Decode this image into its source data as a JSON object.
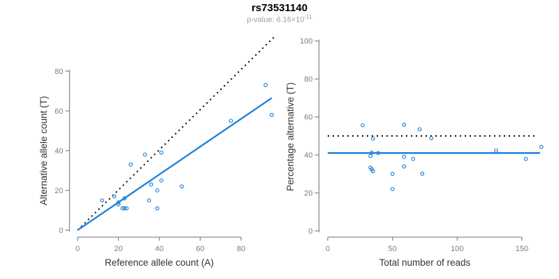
{
  "header": {
    "title": "rs73531140",
    "p_value_text": "p-value: 6.16×10",
    "p_value_exp": "-11"
  },
  "colors": {
    "accent_blue": "#1f82dc",
    "dotted_black": "#000000",
    "axis_line_gray": "#8c8c8c",
    "tick_label_gray": "#7d7d7d",
    "axis_title_dark": "#333333",
    "subtitle_gray": "#9e9e9e"
  },
  "chart_data": [
    {
      "type": "scatter",
      "marker": "open-circle",
      "xlabel": "Reference allele count (A)",
      "ylabel": "Alternative allele count (T)",
      "xticks": [
        0,
        20,
        40,
        60,
        80
      ],
      "yticks": [
        0,
        20,
        40,
        60,
        80
      ],
      "xlim": [
        0,
        96
      ],
      "ylim": [
        0,
        97
      ],
      "points": [
        [
          12,
          15
        ],
        [
          18,
          17
        ],
        [
          20,
          13
        ],
        [
          20,
          14
        ],
        [
          22,
          11
        ],
        [
          23,
          11
        ],
        [
          24,
          11
        ],
        [
          23,
          16
        ],
        [
          26,
          33
        ],
        [
          33,
          38
        ],
        [
          35,
          15
        ],
        [
          36,
          23
        ],
        [
          39,
          11
        ],
        [
          39,
          20
        ],
        [
          41,
          25
        ],
        [
          41,
          39
        ],
        [
          51,
          22
        ],
        [
          75,
          55
        ],
        [
          92,
          73
        ],
        [
          95,
          58
        ]
      ],
      "lines": [
        {
          "name": "identity-line",
          "style": "dotted",
          "color": "black",
          "x1": 0,
          "y1": 0,
          "x2": 96,
          "y2": 97
        },
        {
          "name": "regression-line",
          "style": "solid",
          "color": "blue",
          "x1": 0,
          "y1": 0,
          "x2": 95,
          "y2": 66.5
        }
      ]
    },
    {
      "type": "scatter",
      "marker": "open-circle",
      "xlabel": "Total number of reads",
      "ylabel": "Percentage alternative (T)",
      "xticks": [
        0,
        50,
        100,
        150
      ],
      "yticks": [
        0,
        20,
        40,
        60,
        80,
        100
      ],
      "xlim": [
        0,
        165
      ],
      "ylim": [
        0,
        100
      ],
      "points": [
        [
          27,
          55.6
        ],
        [
          35,
          48.6
        ],
        [
          33,
          39.4
        ],
        [
          34,
          41.2
        ],
        [
          33,
          33.3
        ],
        [
          34,
          32.4
        ],
        [
          35,
          31.4
        ],
        [
          39,
          41.0
        ],
        [
          59,
          55.9
        ],
        [
          71,
          53.5
        ],
        [
          50,
          30.0
        ],
        [
          59,
          39.0
        ],
        [
          50,
          22.0
        ],
        [
          59,
          33.9
        ],
        [
          66,
          37.9
        ],
        [
          80,
          48.8
        ],
        [
          73,
          30.1
        ],
        [
          130,
          42.3
        ],
        [
          165,
          44.2
        ],
        [
          153,
          37.9
        ]
      ],
      "lines": [
        {
          "name": "fifty-percent-line",
          "style": "dotted",
          "color": "black",
          "x1": 0,
          "y1": 50,
          "x2": 162,
          "y2": 50
        },
        {
          "name": "mean-percentage-line",
          "style": "solid",
          "color": "blue",
          "x1": 0,
          "y1": 41,
          "x2": 164,
          "y2": 41
        }
      ]
    }
  ]
}
